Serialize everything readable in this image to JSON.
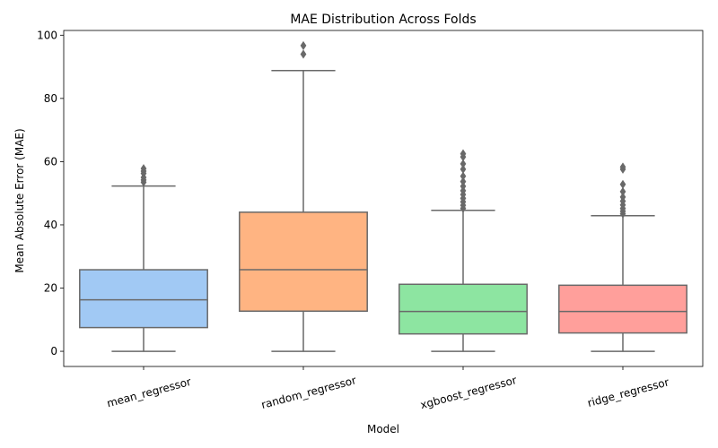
{
  "chart_data": {
    "type": "box",
    "title": "MAE Distribution Across Folds",
    "xlabel": "Model",
    "ylabel": "Mean Absolute Error (MAE)",
    "ylim": [
      -4.8,
      101.5
    ],
    "yticks": [
      0,
      20,
      40,
      60,
      80,
      100
    ],
    "grid": false,
    "categories": [
      "mean_regressor",
      "random_regressor",
      "xgboost_regressor",
      "ridge_regressor"
    ],
    "series": [
      {
        "color": "#a1c9f4",
        "whisker_low": 0,
        "q1": 7.5,
        "median": 16.3,
        "q3": 25.8,
        "whisker_high": 52.3,
        "outliers": [
          53.5,
          54.2,
          55.0,
          56.3,
          57.0,
          57.8
        ]
      },
      {
        "color": "#ffb482",
        "whisker_low": 0,
        "q1": 12.7,
        "median": 25.8,
        "q3": 44.0,
        "whisker_high": 88.8,
        "outliers": [
          94.0,
          96.7
        ]
      },
      {
        "color": "#8de5a1",
        "whisker_low": 0,
        "q1": 5.5,
        "median": 12.6,
        "q3": 21.2,
        "whisker_high": 44.6,
        "outliers": [
          45.2,
          46.2,
          47.3,
          48.4,
          49.6,
          50.8,
          52.2,
          53.7,
          55.4,
          57.6,
          59.3,
          61.5,
          62.5
        ]
      },
      {
        "color": "#ff9f9b",
        "whisker_low": 0,
        "q1": 5.8,
        "median": 12.6,
        "q3": 20.9,
        "whisker_high": 42.9,
        "outliers": [
          43.5,
          44.3,
          45.2,
          46.3,
          47.5,
          48.8,
          50.5,
          52.8,
          57.6,
          58.3
        ]
      }
    ]
  }
}
